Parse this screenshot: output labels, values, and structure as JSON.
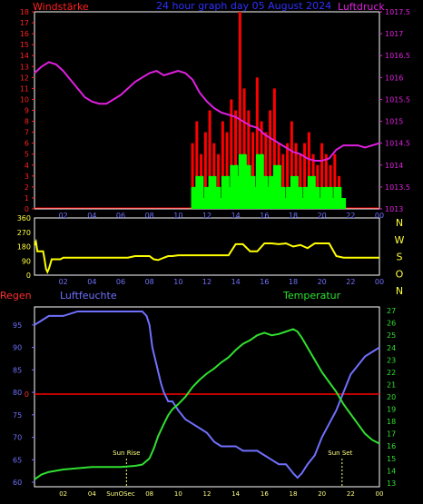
{
  "title": "24 hour graph day  05 August 2024",
  "colors": {
    "bg": "#000000",
    "frame": "#ffffff",
    "wind_label": "#ff2020",
    "title": "#3030ff",
    "pressure": "#e020e0",
    "gust": "#ff0000",
    "wind": "#00ff00",
    "direction": "#ffff00",
    "rain_label": "#ff3030",
    "humidity": "#7070ff",
    "temperature": "#30e030",
    "rain_line": "#ff0000",
    "tick_hours": "#7070ff",
    "sun_label": "#ffff80"
  },
  "chart_data": [
    {
      "type": "line",
      "id": "wind_pressure",
      "title": "24 hour graph day  05 August 2024",
      "left_axis_label": "Windstärke",
      "right_axis_label": "Luftdruck",
      "left_ticks": [
        "0",
        "1",
        "2",
        "3",
        "4",
        "5",
        "6",
        "7",
        "8",
        "9",
        "10",
        "11",
        "12",
        "13",
        "14",
        "15",
        "16",
        "17",
        "18"
      ],
      "right_ticks": [
        "1013",
        "1013.5",
        "1014",
        "1014.5",
        "1015",
        "1015.5",
        "1016",
        "1016.5",
        "1017",
        "1017.5"
      ],
      "x_ticks": [
        "02",
        "04",
        "06",
        "08",
        "10",
        "12",
        "14",
        "16",
        "18",
        "20",
        "22",
        "00"
      ],
      "ylim_left": [
        0,
        18
      ],
      "ylim_right": [
        1013,
        1017.5
      ],
      "xlim": [
        0,
        24
      ],
      "pressure": {
        "name": "Luftdruck",
        "x": [
          0,
          0.5,
          1,
          1.5,
          2,
          2.5,
          3,
          3.5,
          4,
          4.5,
          5,
          5.5,
          6,
          6.5,
          7,
          7.5,
          8,
          8.5,
          9,
          9.5,
          10,
          10.5,
          11,
          11.5,
          12,
          12.5,
          13,
          13.5,
          14,
          14.5,
          15,
          15.5,
          16,
          16.5,
          17,
          17.5,
          18,
          18.5,
          19,
          19.5,
          20,
          20.5,
          21,
          21.5,
          22,
          22.5,
          23,
          23.5,
          24
        ],
        "y": [
          1016.1,
          1016.25,
          1016.35,
          1016.3,
          1016.15,
          1015.95,
          1015.75,
          1015.55,
          1015.45,
          1015.4,
          1015.4,
          1015.5,
          1015.6,
          1015.75,
          1015.9,
          1016.0,
          1016.1,
          1016.15,
          1016.05,
          1016.1,
          1016.15,
          1016.1,
          1015.95,
          1015.65,
          1015.45,
          1015.3,
          1015.2,
          1015.15,
          1015.1,
          1015.0,
          1014.9,
          1014.85,
          1014.7,
          1014.6,
          1014.5,
          1014.4,
          1014.3,
          1014.25,
          1014.15,
          1014.1,
          1014.1,
          1014.15,
          1014.35,
          1014.45,
          1014.45,
          1014.45,
          1014.4,
          1014.45,
          1014.5
        ]
      },
      "wind": {
        "name": "wind",
        "x": [
          10.9,
          11.2,
          11.5,
          11.8,
          12.1,
          12.4,
          12.7,
          13.0,
          13.3,
          13.6,
          13.9,
          14.2,
          14.5,
          14.8,
          15.1,
          15.4,
          15.7,
          16.0,
          16.3,
          16.6,
          16.9,
          17.2,
          17.5,
          17.8,
          18.1,
          18.4,
          18.7,
          19.0,
          19.3,
          19.6,
          19.9,
          20.2,
          20.5,
          20.8,
          21.1
        ],
        "y": [
          2,
          3,
          1,
          2,
          3,
          2,
          1,
          3,
          2,
          4,
          3,
          5,
          4,
          3,
          2,
          5,
          3,
          2,
          3,
          4,
          2,
          1,
          2,
          3,
          2,
          1,
          2,
          3,
          2,
          1,
          2,
          2,
          1,
          2,
          1
        ]
      },
      "gust": {
        "name": "gust",
        "x": [
          10.9,
          11.2,
          11.5,
          11.8,
          12.1,
          12.4,
          12.7,
          13.0,
          13.3,
          13.6,
          13.9,
          14.2,
          14.5,
          14.8,
          15.1,
          15.4,
          15.7,
          16.0,
          16.3,
          16.6,
          16.9,
          17.2,
          17.5,
          17.8,
          18.1,
          18.4,
          18.7,
          19.0,
          19.3,
          19.6,
          19.9,
          20.2,
          20.5,
          20.8,
          21.1
        ],
        "y": [
          6,
          8,
          5,
          7,
          9,
          6,
          5,
          8,
          7,
          10,
          9,
          18,
          11,
          9,
          7,
          12,
          8,
          7,
          9,
          11,
          6,
          5,
          6,
          8,
          6,
          5,
          6,
          7,
          5,
          4,
          6,
          5,
          4,
          5,
          3
        ]
      }
    },
    {
      "type": "line",
      "id": "direction",
      "title": "",
      "left_ticks": [
        "0",
        "90",
        "180",
        "270",
        "360"
      ],
      "right_ticks": [
        "N",
        "W",
        "S",
        "O",
        "N"
      ],
      "x_ticks": [
        "02",
        "04",
        "06",
        "08",
        "10",
        "12",
        "14",
        "16",
        "18",
        "20",
        "22",
        "00"
      ],
      "ylim": [
        0,
        360
      ],
      "xlim": [
        0,
        24
      ],
      "series": [
        {
          "name": "direction",
          "x": [
            0,
            0.1,
            0.2,
            0.3,
            0.4,
            0.5,
            0.6,
            0.7,
            0.8,
            0.9,
            1.0,
            1.2,
            1.6,
            1.8,
            2.0,
            2.5,
            3,
            3.5,
            4,
            4.5,
            5,
            5.5,
            6,
            6.5,
            7,
            7.5,
            8,
            8.3,
            8.6,
            9,
            9.3,
            9.6,
            10,
            10.5,
            11,
            11.5,
            12,
            12.5,
            13,
            13.5,
            14,
            14.5,
            15,
            15.5,
            16,
            16.5,
            17,
            17.5,
            18,
            18.5,
            19,
            19.5,
            20,
            20.5,
            21,
            21.5,
            22,
            22.5,
            23,
            23.5,
            24
          ],
          "y": [
            190,
            210,
            150,
            150,
            150,
            150,
            150,
            100,
            40,
            20,
            40,
            100,
            100,
            100,
            110,
            110,
            110,
            110,
            110,
            110,
            110,
            110,
            110,
            110,
            120,
            120,
            120,
            100,
            95,
            110,
            120,
            120,
            125,
            125,
            125,
            125,
            125,
            125,
            125,
            125,
            195,
            195,
            150,
            150,
            200,
            200,
            195,
            200,
            180,
            190,
            170,
            200,
            200,
            200,
            120,
            110,
            110,
            110,
            110,
            110,
            110
          ]
        }
      ]
    },
    {
      "type": "line",
      "id": "humidity_temperature",
      "title": "",
      "left_axis_label": "Regen",
      "humidity_label": "Luftfeuchte",
      "temperature_label": "Temperatur",
      "left_ticks": [
        "60",
        "65",
        "70",
        "75",
        "80",
        "85",
        "90",
        "95"
      ],
      "right_ticks": [
        "13",
        "14",
        "15",
        "16",
        "17",
        "18",
        "19",
        "20",
        "21",
        "22",
        "23",
        "24",
        "25",
        "26",
        "27"
      ],
      "x_ticks": [
        "02",
        "04",
        "SunOSec",
        "08",
        "10",
        "12",
        "14",
        "16",
        "18",
        "20",
        "22",
        "00"
      ],
      "rain_tick": "0",
      "annotations": [
        "Sun Rise",
        "Sun Set"
      ],
      "ylim_left": [
        59,
        99
      ],
      "ylim_right": [
        12.7,
        27.3
      ],
      "xlim": [
        0,
        24
      ],
      "humidity": {
        "name": "Luftfeuchte",
        "x": [
          0,
          0.5,
          1,
          1.5,
          2,
          3,
          4,
          5,
          6,
          7,
          7.5,
          7.8,
          8,
          8.2,
          8.5,
          8.8,
          9,
          9.3,
          9.6,
          10,
          10.5,
          11,
          11.5,
          12,
          12.5,
          13,
          13.5,
          14,
          14.5,
          15,
          15.5,
          16,
          16.5,
          17,
          17.5,
          18,
          18.3,
          18.6,
          19,
          19.5,
          20,
          20.5,
          21,
          21.5,
          22,
          22.5,
          23,
          23.5,
          24
        ],
        "y": [
          95,
          96,
          97,
          97,
          97,
          98,
          98,
          98,
          98,
          98,
          98,
          97,
          95,
          90,
          86,
          82,
          80,
          78,
          78,
          76,
          74,
          73,
          72,
          71,
          69,
          68,
          68,
          68,
          67,
          67,
          67,
          66,
          65,
          64,
          64,
          62,
          61,
          62,
          64,
          66,
          70,
          73,
          76,
          80,
          84,
          86,
          88,
          89,
          90
        ]
      },
      "temperature": {
        "name": "Temperatur",
        "x": [
          0,
          0.5,
          1,
          1.5,
          2,
          3,
          4,
          5,
          6,
          7,
          7.5,
          8,
          8.3,
          8.6,
          9,
          9.3,
          9.6,
          10,
          10.5,
          11,
          11.5,
          12,
          12.5,
          13,
          13.5,
          14,
          14.5,
          15,
          15.5,
          16,
          16.5,
          17,
          17.5,
          18,
          18.3,
          18.6,
          19,
          19.5,
          20,
          20.5,
          21,
          21.5,
          22,
          22.5,
          23,
          23.5,
          24
        ],
        "y": [
          13.3,
          13.7,
          13.9,
          14.0,
          14.1,
          14.2,
          14.3,
          14.3,
          14.3,
          14.4,
          14.5,
          15.0,
          15.8,
          16.8,
          17.8,
          18.5,
          19.0,
          19.4,
          20.0,
          20.8,
          21.4,
          21.9,
          22.3,
          22.8,
          23.2,
          23.8,
          24.3,
          24.6,
          25.0,
          25.2,
          25.0,
          25.1,
          25.3,
          25.5,
          25.3,
          24.8,
          24.0,
          23.0,
          22.0,
          21.2,
          20.4,
          19.4,
          18.6,
          17.8,
          17.0,
          16.5,
          16.2
        ]
      },
      "rain": {
        "name": "Regen",
        "value": 0
      }
    }
  ]
}
